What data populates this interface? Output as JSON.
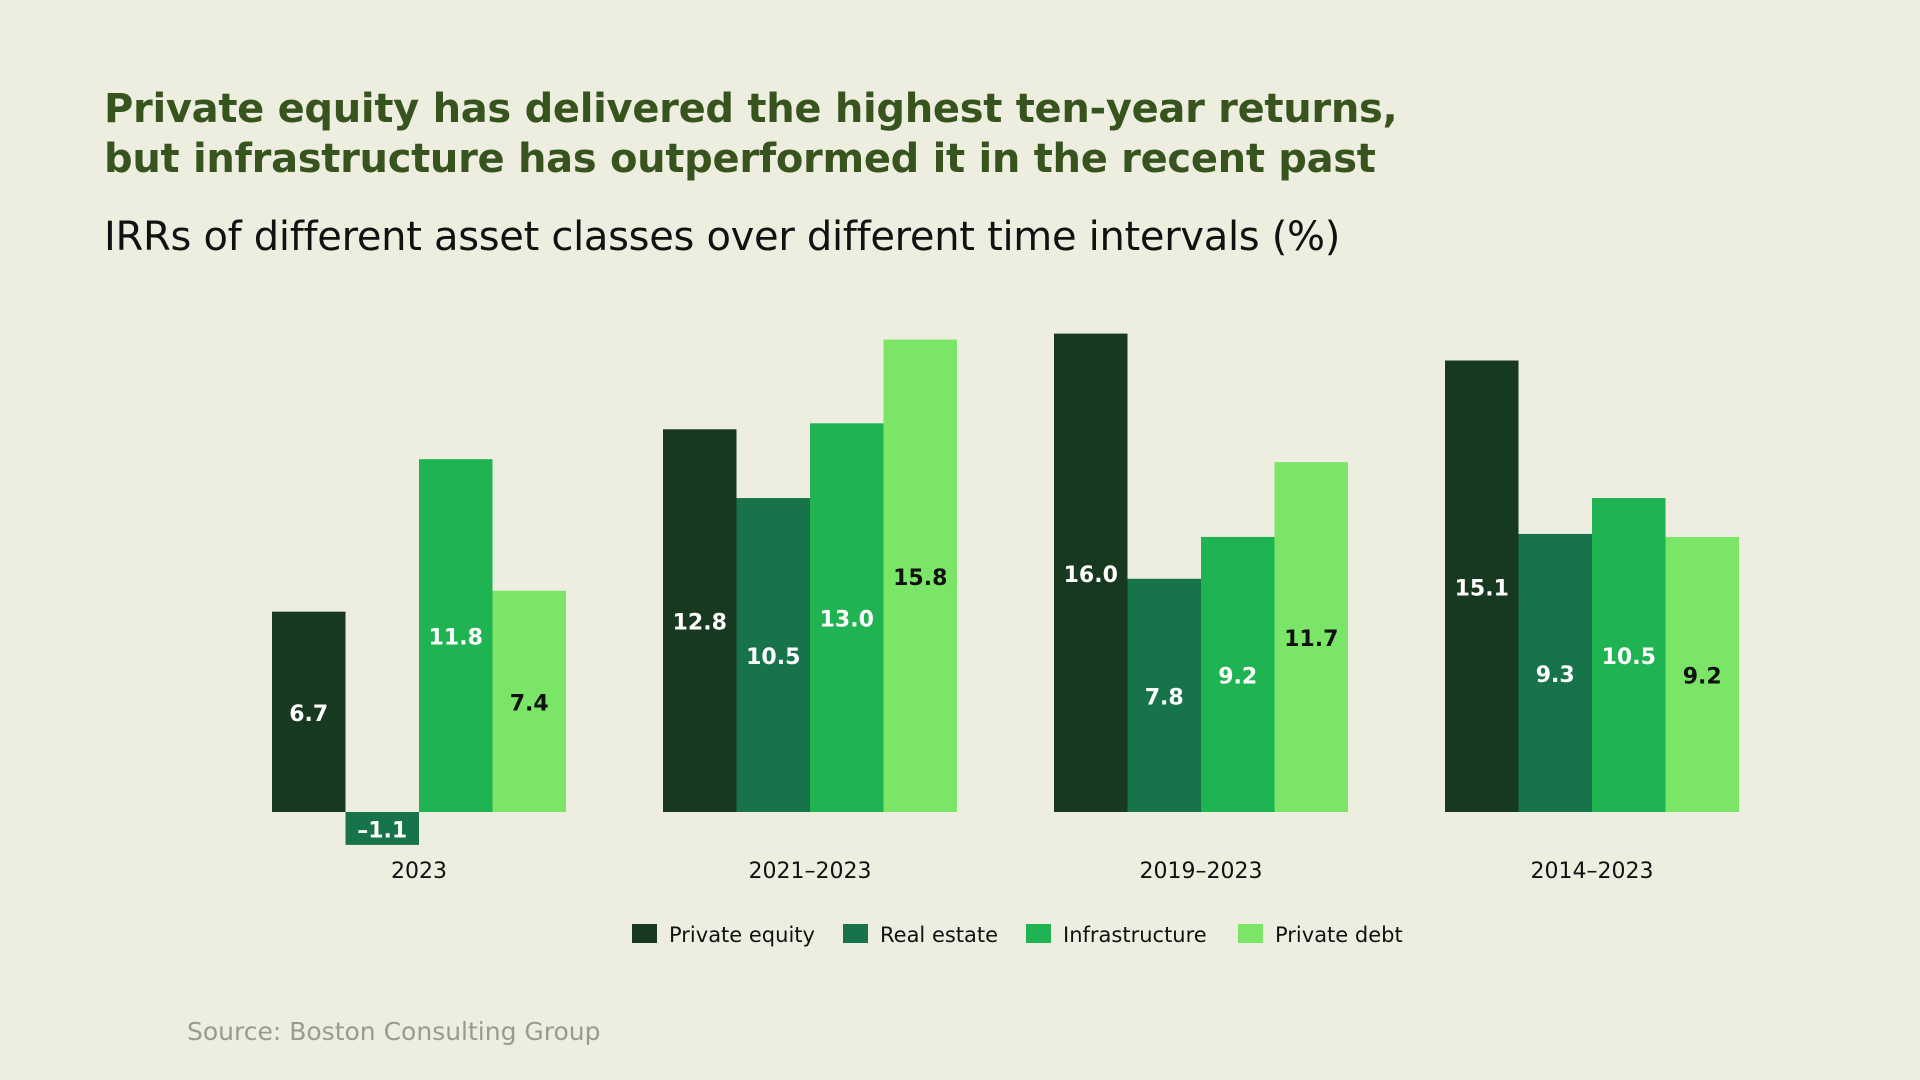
{
  "headline": {
    "line1": "Private equity has delivered the highest ten-year returns,",
    "line2": "but infrastructure has outperformed it in the recent past"
  },
  "source": "Source: Boston Consulting Group",
  "chart_data": {
    "type": "bar",
    "title": "IRRs of different asset classes over different time intervals (%)",
    "xlabel": "",
    "ylabel": "",
    "categories": [
      "2023",
      "2021–2023",
      "2019–2023",
      "2014–2023"
    ],
    "series": [
      {
        "name": "Private equity",
        "color": "#16391f",
        "values": [
          6.7,
          12.8,
          16.0,
          15.1
        ],
        "labels": [
          "6.7",
          "12.8",
          "16.0",
          "15.1"
        ]
      },
      {
        "name": "Real estate",
        "color": "#17744a",
        "values": [
          -1.1,
          10.5,
          7.8,
          9.3
        ],
        "labels": [
          "–1.1",
          "10.5",
          "7.8",
          "9.3"
        ]
      },
      {
        "name": "Infrastructure",
        "color": "#20b352",
        "values": [
          11.8,
          13.0,
          9.2,
          10.5
        ],
        "labels": [
          "11.8",
          "13.0",
          "9.2",
          "10.5"
        ]
      },
      {
        "name": "Private debt",
        "color": "#7ae567",
        "values": [
          7.4,
          15.8,
          11.7,
          9.2
        ],
        "labels": [
          "7.4",
          "15.8",
          "11.7",
          "9.2"
        ]
      }
    ],
    "ylim": [
      -1.1,
      16.0
    ],
    "grid": false,
    "legend": "bottom-center"
  }
}
